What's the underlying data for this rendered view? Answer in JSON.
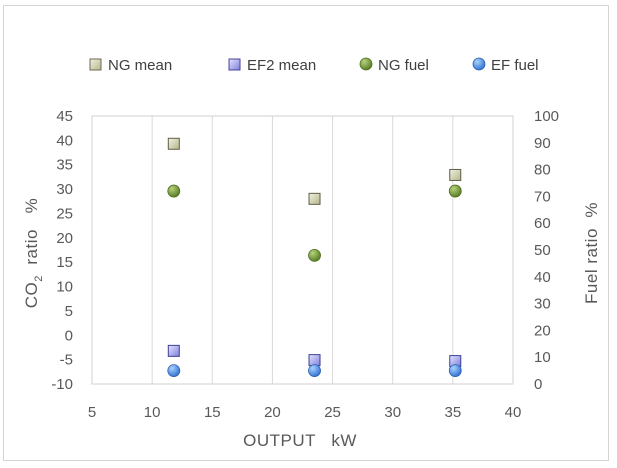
{
  "chart_data": {
    "type": "scatter",
    "title": "",
    "xlabel": "OUTPUT   kW",
    "ylabel_left": {
      "base": "CO",
      "sub": "2",
      "rest": "  ratio   %"
    },
    "ylabel_right": "Fuel ratio  %",
    "xlim": [
      5,
      40
    ],
    "xticks": [
      5,
      10,
      15,
      20,
      25,
      30,
      35,
      40
    ],
    "ylim_left": [
      -10,
      45
    ],
    "yticks_left": [
      -10,
      -5,
      0,
      5,
      10,
      15,
      20,
      25,
      30,
      35,
      40,
      45
    ],
    "ylim_right": [
      0,
      100
    ],
    "yticks_right": [
      0,
      10,
      20,
      30,
      40,
      50,
      60,
      70,
      80,
      90,
      100
    ],
    "grid": "vertical",
    "legend": "top",
    "series": [
      {
        "name": "NG mean",
        "axis": "left",
        "marker": "square",
        "color": "#c9c9a6",
        "x": [
          11.8,
          23.5,
          35.2
        ],
        "y": [
          39.3,
          28.0,
          32.9
        ]
      },
      {
        "name": "EF2 mean",
        "axis": "left",
        "marker": "square",
        "color": "#9a9ce8",
        "x": [
          11.8,
          23.5,
          35.2
        ],
        "y": [
          -3.2,
          -5.1,
          -5.3
        ]
      },
      {
        "name": "NG fuel",
        "axis": "right",
        "marker": "circle",
        "color": "#6f9a32",
        "x": [
          11.8,
          23.5,
          35.2
        ],
        "y": [
          72,
          48,
          72
        ]
      },
      {
        "name": "EF fuel",
        "axis": "right",
        "marker": "circle",
        "color": "#4a8be0",
        "x": [
          11.8,
          23.5,
          35.2
        ],
        "y": [
          5,
          5,
          5
        ]
      }
    ]
  }
}
